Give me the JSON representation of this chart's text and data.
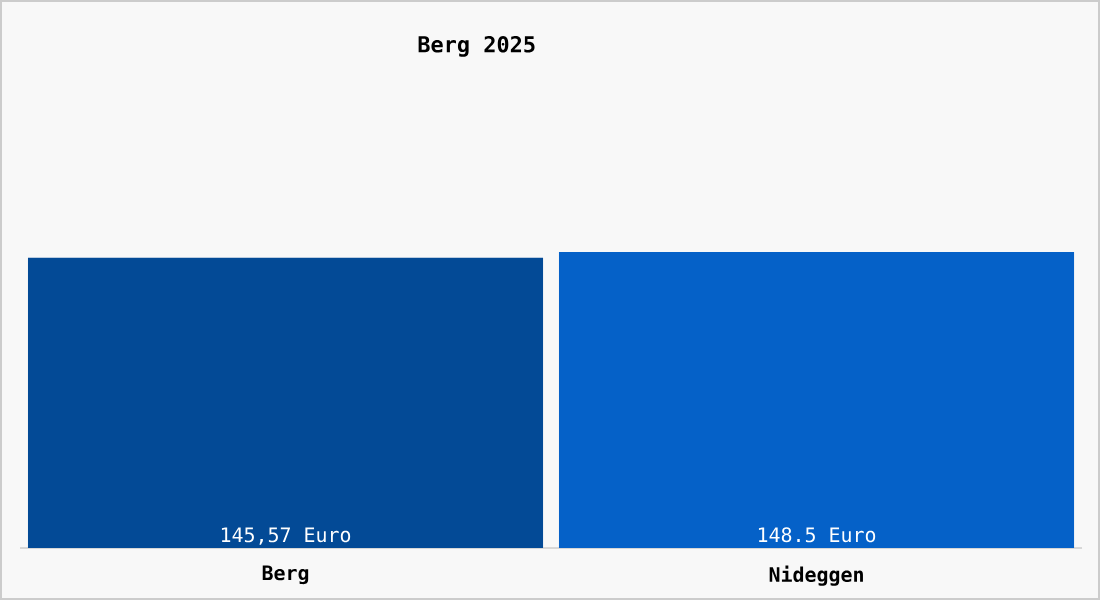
{
  "chart_data": {
    "type": "bar",
    "title": "Berg 2025",
    "categories": [
      "Berg",
      "Nideggen"
    ],
    "values": [
      145.57,
      148.5
    ],
    "colors": [
      "#034a96",
      "#0561c8"
    ],
    "value_labels": [
      "145,57 Euro",
      "148.5 Euro"
    ]
  }
}
